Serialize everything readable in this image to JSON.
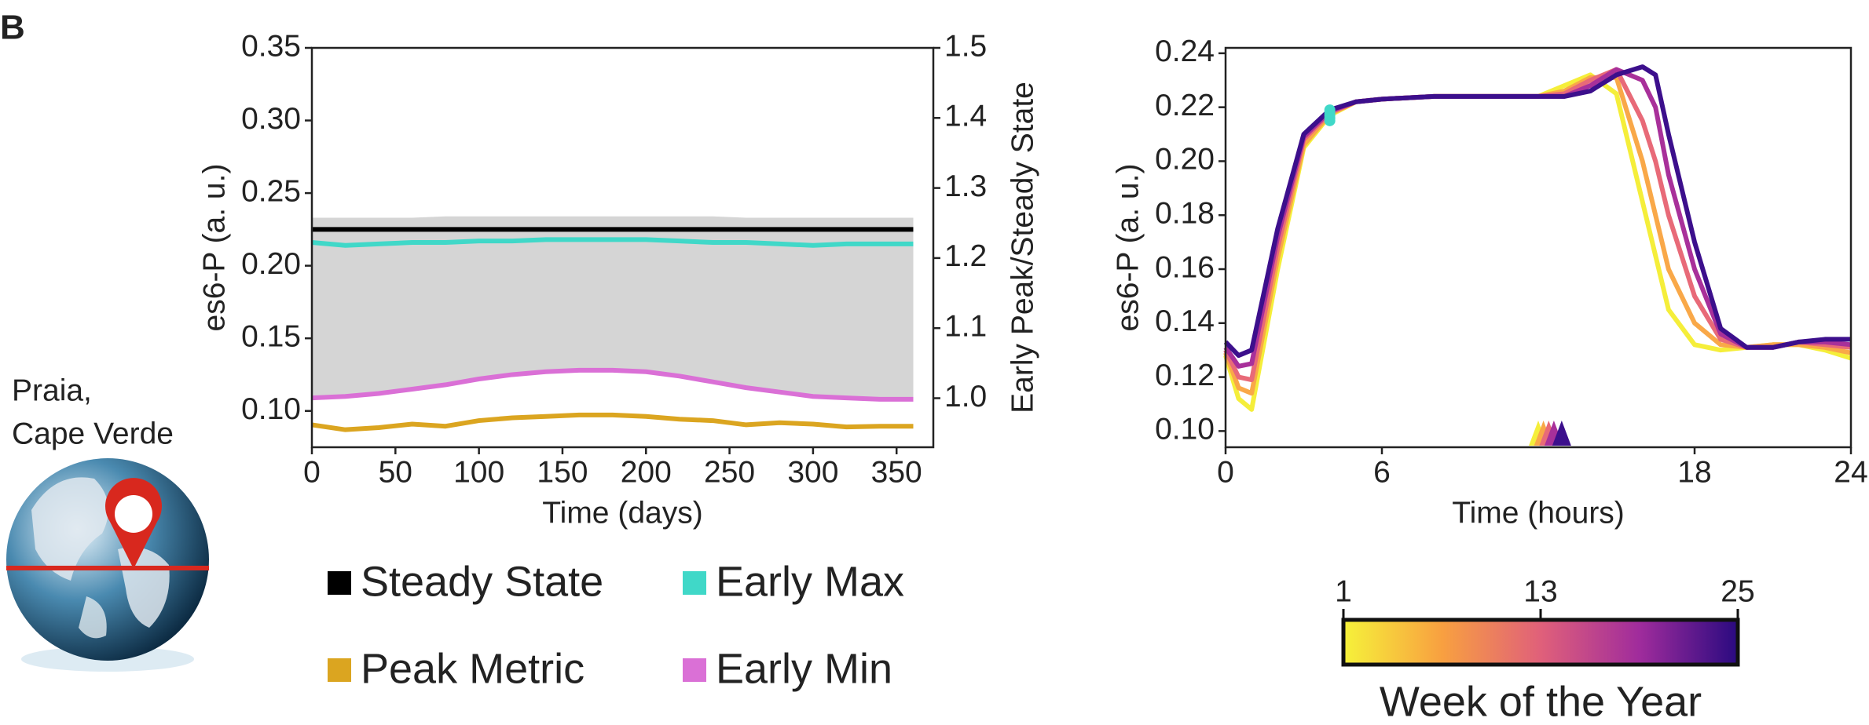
{
  "panel_label": "B",
  "location": [
    "Praia,",
    "Cape Verde"
  ],
  "chart_data": [
    {
      "type": "line",
      "xlabel": "Time (days)",
      "ylabel": "es6-P (a. u.)",
      "y2label": "Early Peak/Steady State",
      "x": [
        0,
        20,
        40,
        60,
        80,
        100,
        120,
        140,
        160,
        180,
        200,
        220,
        240,
        260,
        280,
        300,
        320,
        340,
        360
      ],
      "xlim": [
        0,
        372
      ],
      "ylim": [
        0.075,
        0.35
      ],
      "y2lim": [
        0.93,
        1.5
      ],
      "xticks": [
        0,
        50,
        100,
        150,
        200,
        250,
        300,
        350
      ],
      "yticks": [
        {
          "value": 0.1,
          "label": "0.10"
        },
        0.15,
        {
          "value": 0.2,
          "label": "0.20"
        },
        0.25,
        {
          "value": 0.3,
          "label": "0.30"
        },
        0.35
      ],
      "y2ticks": [
        {
          "value": 1.0,
          "label": "1.0"
        },
        1.1,
        1.2,
        1.3,
        1.4,
        1.5
      ],
      "band": {
        "color": "#d5d5d5",
        "upper": [
          0.233,
          0.233,
          0.233,
          0.233,
          0.234,
          0.234,
          0.234,
          0.234,
          0.234,
          0.234,
          0.234,
          0.234,
          0.234,
          0.233,
          0.233,
          0.233,
          0.233,
          0.233,
          0.233
        ],
        "lower": [
          0.109,
          0.11,
          0.112,
          0.115,
          0.118,
          0.122,
          0.125,
          0.127,
          0.128,
          0.128,
          0.127,
          0.124,
          0.12,
          0.116,
          0.113,
          0.11,
          0.109,
          0.108,
          0.108
        ]
      },
      "legend": "below",
      "series": [
        {
          "name": "Steady State",
          "color": "#000000",
          "values": [
            0.225,
            0.225,
            0.225,
            0.225,
            0.225,
            0.225,
            0.225,
            0.225,
            0.225,
            0.225,
            0.225,
            0.225,
            0.225,
            0.225,
            0.225,
            0.225,
            0.225,
            0.225,
            0.225
          ]
        },
        {
          "name": "Early Max",
          "color": "#40d8c8",
          "values": [
            0.216,
            0.214,
            0.215,
            0.216,
            0.216,
            0.217,
            0.217,
            0.218,
            0.218,
            0.218,
            0.218,
            0.217,
            0.216,
            0.216,
            0.215,
            0.214,
            0.215,
            0.215,
            0.215
          ]
        },
        {
          "name": "Peak Metric",
          "color": "#dba520",
          "axis": "y2",
          "values": [
            0.962,
            0.955,
            0.958,
            0.963,
            0.96,
            0.968,
            0.972,
            0.974,
            0.976,
            0.976,
            0.974,
            0.97,
            0.968,
            0.962,
            0.965,
            0.963,
            0.959,
            0.96,
            0.96
          ]
        },
        {
          "name": "Early Min",
          "color": "#da70d6",
          "values": [
            0.109,
            0.11,
            0.112,
            0.115,
            0.118,
            0.122,
            0.125,
            0.127,
            0.128,
            0.128,
            0.127,
            0.124,
            0.12,
            0.116,
            0.113,
            0.11,
            0.109,
            0.108,
            0.108
          ]
        }
      ]
    },
    {
      "type": "line",
      "xlabel": "Time (hours)",
      "ylabel": "es6-P (a. u.)",
      "x": [
        0,
        0.5,
        1,
        2,
        3,
        4,
        5,
        6,
        8,
        10,
        12,
        13,
        14,
        15,
        16,
        16.5,
        17,
        18,
        19,
        20,
        21,
        22,
        23,
        24
      ],
      "xlim": [
        0,
        24
      ],
      "ylim": [
        0.094,
        0.242
      ],
      "xticks": [
        0,
        6,
        18,
        24
      ],
      "yticks": [
        {
          "value": 0.1,
          "label": "0.10"
        },
        0.12,
        0.14,
        0.16,
        0.18,
        {
          "value": 0.2,
          "label": "0.20"
        },
        0.22,
        0.24
      ],
      "early_max_x": 4,
      "early_max_color": "#40d8c8",
      "series": [
        {
          "color": "#f5ee3a",
          "peak_time": 12.0,
          "early_max": 0.215,
          "values": [
            0.128,
            0.112,
            0.108,
            0.16,
            0.205,
            0.217,
            0.222,
            0.223,
            0.224,
            0.224,
            0.224,
            0.228,
            0.232,
            0.225,
            0.185,
            0.165,
            0.145,
            0.132,
            0.13,
            0.131,
            0.132,
            0.132,
            0.13,
            0.127
          ]
        },
        {
          "color": "#f9a848",
          "peak_time": 12.2,
          "early_max": 0.216,
          "values": [
            0.129,
            0.116,
            0.114,
            0.164,
            0.206,
            0.2175,
            0.222,
            0.223,
            0.224,
            0.224,
            0.224,
            0.226,
            0.231,
            0.231,
            0.2,
            0.18,
            0.16,
            0.14,
            0.132,
            0.131,
            0.132,
            0.132,
            0.131,
            0.129
          ]
        },
        {
          "color": "#e86a78",
          "peak_time": 12.4,
          "early_max": 0.217,
          "values": [
            0.13,
            0.12,
            0.119,
            0.168,
            0.208,
            0.218,
            0.222,
            0.223,
            0.224,
            0.224,
            0.224,
            0.225,
            0.23,
            0.234,
            0.215,
            0.2,
            0.18,
            0.15,
            0.134,
            0.131,
            0.131,
            0.133,
            0.132,
            0.131
          ]
        },
        {
          "color": "#a8309a",
          "peak_time": 12.6,
          "early_max": 0.218,
          "values": [
            0.131,
            0.124,
            0.125,
            0.172,
            0.209,
            0.2185,
            0.222,
            0.223,
            0.224,
            0.224,
            0.224,
            0.224,
            0.228,
            0.234,
            0.23,
            0.22,
            0.195,
            0.16,
            0.136,
            0.131,
            0.131,
            0.133,
            0.133,
            0.132
          ]
        },
        {
          "color": "#3c0f8c",
          "peak_time": 12.9,
          "early_max": 0.219,
          "values": [
            0.133,
            0.128,
            0.13,
            0.175,
            0.21,
            0.219,
            0.222,
            0.223,
            0.224,
            0.224,
            0.224,
            0.224,
            0.226,
            0.232,
            0.235,
            0.232,
            0.21,
            0.17,
            0.138,
            0.131,
            0.131,
            0.133,
            0.134,
            0.134
          ]
        }
      ],
      "colorbar": {
        "label": "Week of the Year",
        "lim": [
          1,
          25
        ],
        "ticks": [
          1,
          13,
          25
        ],
        "colors": [
          "#f6f23a",
          "#f8a040",
          "#e0607a",
          "#a02c9c",
          "#2a0a80"
        ]
      }
    }
  ]
}
